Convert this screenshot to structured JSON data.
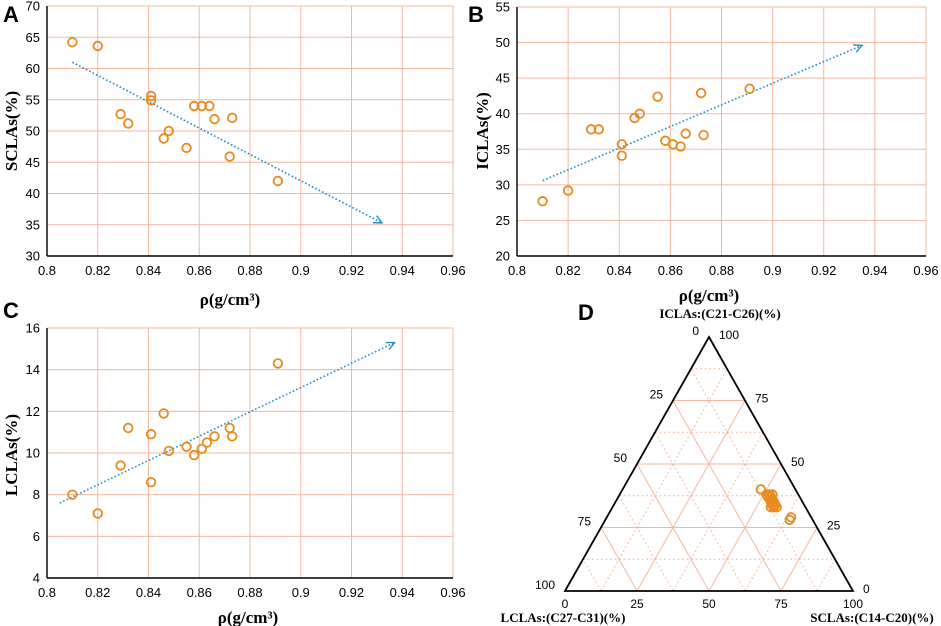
{
  "colors": {
    "grid": "#f2b8a0",
    "marker": "#e98a1f",
    "trend": "#1f8fc9",
    "axis": "#000000",
    "text": "#000000"
  },
  "chart_data": [
    {
      "panel": "A",
      "type": "scatter",
      "xlabel": "ρ(g/cm³)",
      "ylabel": "SCLAs(%)",
      "xlim": [
        0.8,
        0.96
      ],
      "ylim": [
        30,
        70
      ],
      "xticks": [
        "0.8",
        "0.82",
        "0.84",
        "0.86",
        "0.88",
        "0.9",
        "0.92",
        "0.94",
        "0.96"
      ],
      "yticks": [
        "30",
        "35",
        "40",
        "45",
        "50",
        "55",
        "60",
        "65",
        "70"
      ],
      "points": [
        {
          "x": 0.81,
          "y": 64.2
        },
        {
          "x": 0.82,
          "y": 63.6
        },
        {
          "x": 0.829,
          "y": 52.7
        },
        {
          "x": 0.832,
          "y": 51.2
        },
        {
          "x": 0.841,
          "y": 55.6
        },
        {
          "x": 0.841,
          "y": 54.9
        },
        {
          "x": 0.846,
          "y": 48.8
        },
        {
          "x": 0.848,
          "y": 50.0
        },
        {
          "x": 0.855,
          "y": 47.3
        },
        {
          "x": 0.858,
          "y": 54.0
        },
        {
          "x": 0.861,
          "y": 54.0
        },
        {
          "x": 0.864,
          "y": 54.0
        },
        {
          "x": 0.866,
          "y": 51.9
        },
        {
          "x": 0.872,
          "y": 45.9
        },
        {
          "x": 0.873,
          "y": 52.1
        },
        {
          "x": 0.891,
          "y": 42.0
        }
      ],
      "trend": {
        "x": [
          0.81,
          0.932
        ],
        "y": [
          61.0,
          35.3
        ]
      }
    },
    {
      "panel": "B",
      "type": "scatter",
      "xlabel": "ρ(g/cm³)",
      "ylabel": "ICLAs(%)",
      "xlim": [
        0.8,
        0.96
      ],
      "ylim": [
        20,
        55
      ],
      "xticks": [
        "0.8",
        "0.82",
        "0.84",
        "0.86",
        "0.88",
        "0.9",
        "0.92",
        "0.94",
        "0.96"
      ],
      "yticks": [
        "20",
        "25",
        "30",
        "35",
        "40",
        "45",
        "50",
        "55"
      ],
      "points": [
        {
          "x": 0.81,
          "y": 27.7
        },
        {
          "x": 0.82,
          "y": 29.2
        },
        {
          "x": 0.829,
          "y": 37.8
        },
        {
          "x": 0.832,
          "y": 37.8
        },
        {
          "x": 0.841,
          "y": 35.7
        },
        {
          "x": 0.841,
          "y": 34.1
        },
        {
          "x": 0.846,
          "y": 39.4
        },
        {
          "x": 0.848,
          "y": 40.0
        },
        {
          "x": 0.855,
          "y": 42.4
        },
        {
          "x": 0.858,
          "y": 36.2
        },
        {
          "x": 0.861,
          "y": 35.7
        },
        {
          "x": 0.864,
          "y": 35.4
        },
        {
          "x": 0.866,
          "y": 37.2
        },
        {
          "x": 0.872,
          "y": 42.9
        },
        {
          "x": 0.873,
          "y": 37.0
        },
        {
          "x": 0.891,
          "y": 43.5
        }
      ],
      "trend": {
        "x": [
          0.81,
          0.935
        ],
        "y": [
          30.6,
          49.6
        ]
      }
    },
    {
      "panel": "C",
      "type": "scatter",
      "xlabel": "ρ(g/cm³)",
      "ylabel": "LCLAs(%)",
      "xlim": [
        0.8,
        0.96
      ],
      "ylim": [
        4,
        16
      ],
      "xticks": [
        "0.8",
        "0.82",
        "0.84",
        "0.86",
        "0.88",
        "0.9",
        "0.92",
        "0.94",
        "0.96"
      ],
      "yticks": [
        "4",
        "6",
        "8",
        "10",
        "12",
        "14",
        "16"
      ],
      "points": [
        {
          "x": 0.81,
          "y": 8.0
        },
        {
          "x": 0.82,
          "y": 7.1
        },
        {
          "x": 0.829,
          "y": 9.4
        },
        {
          "x": 0.832,
          "y": 11.2
        },
        {
          "x": 0.841,
          "y": 10.9
        },
        {
          "x": 0.841,
          "y": 8.6
        },
        {
          "x": 0.846,
          "y": 11.9
        },
        {
          "x": 0.848,
          "y": 10.1
        },
        {
          "x": 0.855,
          "y": 10.3
        },
        {
          "x": 0.858,
          "y": 9.9
        },
        {
          "x": 0.861,
          "y": 10.2
        },
        {
          "x": 0.863,
          "y": 10.5
        },
        {
          "x": 0.866,
          "y": 10.8
        },
        {
          "x": 0.872,
          "y": 11.2
        },
        {
          "x": 0.873,
          "y": 10.8
        },
        {
          "x": 0.891,
          "y": 14.3
        }
      ],
      "trend": {
        "x": [
          0.805,
          0.937
        ],
        "y": [
          7.6,
          15.3
        ]
      }
    },
    {
      "panel": "D",
      "type": "ternary",
      "labels": {
        "top": "ICLAs:(C21-C26)(%)",
        "left": "LCLAs:(C27-C31)(%)",
        "right": "SCLAs:(C14-C20)(%)"
      },
      "ticks": [
        "0",
        "25",
        "50",
        "75",
        "100"
      ],
      "points": [
        {
          "s": 52,
          "i": 38,
          "l": 10
        },
        {
          "s": 53,
          "i": 38,
          "l": 9
        },
        {
          "s": 52,
          "i": 37,
          "l": 11
        },
        {
          "s": 54,
          "i": 36,
          "l": 10
        },
        {
          "s": 54,
          "i": 35,
          "l": 11
        },
        {
          "s": 55,
          "i": 34,
          "l": 11
        },
        {
          "s": 56,
          "i": 33,
          "l": 11
        },
        {
          "s": 55,
          "i": 33,
          "l": 12
        },
        {
          "s": 56,
          "i": 34,
          "l": 10
        },
        {
          "s": 48,
          "i": 40,
          "l": 12
        },
        {
          "s": 53,
          "i": 37,
          "l": 10
        },
        {
          "s": 55,
          "i": 35,
          "l": 10
        },
        {
          "s": 64,
          "i": 28,
          "l": 8
        },
        {
          "s": 64,
          "i": 29,
          "l": 7
        },
        {
          "s": 51,
          "i": 38,
          "l": 11
        },
        {
          "s": 57,
          "i": 33,
          "l": 10
        }
      ]
    }
  ]
}
